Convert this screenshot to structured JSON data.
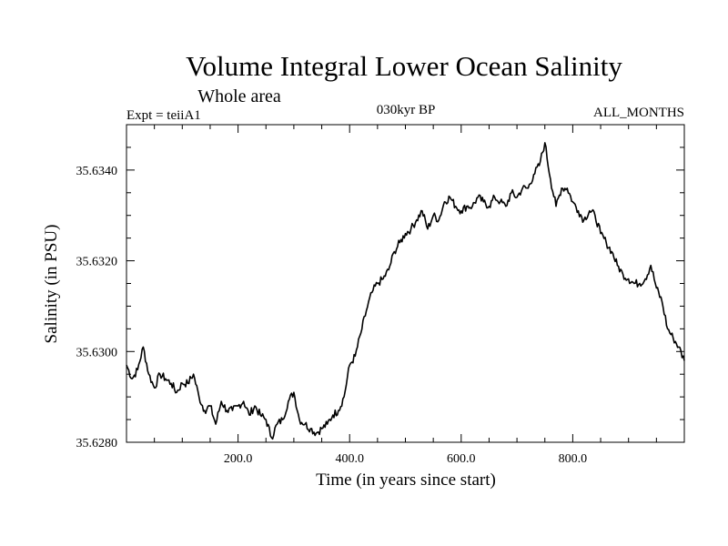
{
  "chart_data": {
    "type": "line",
    "title": "Volume Integral Lower Ocean Salinity",
    "subtitle": "Whole area",
    "annotations": {
      "left": "Expt = teiiA1",
      "center": "030kyr BP",
      "right": "ALL_MONTHS"
    },
    "xlabel": "Time (in years since start)",
    "ylabel": "Salinity (in PSU)",
    "xlim": [
      0,
      1000
    ],
    "ylim": [
      35.628,
      35.635
    ],
    "xticks": [
      200,
      400,
      600,
      800
    ],
    "xtick_labels": [
      "200.0",
      "400.0",
      "600.0",
      "800.0"
    ],
    "yticks": [
      35.628,
      35.63,
      35.632,
      35.634
    ],
    "ytick_labels": [
      "35.6280",
      "35.6300",
      "35.6320",
      "35.6340"
    ],
    "grid": false,
    "color": "#000000",
    "series": [
      {
        "x": [
          0,
          10,
          20,
          30,
          40,
          50,
          60,
          70,
          80,
          90,
          100,
          110,
          120,
          130,
          140,
          150,
          160,
          170,
          180,
          190,
          200,
          210,
          220,
          230,
          240,
          250,
          260,
          270,
          280,
          290,
          300,
          310,
          320,
          330,
          340,
          350,
          360,
          370,
          380,
          390,
          400,
          410,
          420,
          430,
          440,
          450,
          460,
          470,
          480,
          490,
          500,
          510,
          520,
          530,
          540,
          550,
          560,
          570,
          580,
          590,
          600,
          610,
          620,
          630,
          640,
          650,
          660,
          670,
          680,
          690,
          700,
          710,
          720,
          730,
          740,
          750,
          760,
          770,
          780,
          790,
          800,
          810,
          820,
          830,
          840,
          850,
          860,
          870,
          880,
          890,
          900,
          910,
          920,
          930,
          940,
          950,
          960,
          970,
          980,
          990,
          1000
        ],
        "values": [
          35.6297,
          35.6294,
          35.6296,
          35.6301,
          35.6295,
          35.6292,
          35.6295,
          35.6294,
          35.6293,
          35.6291,
          35.6293,
          35.6293,
          35.6295,
          35.629,
          35.6287,
          35.6288,
          35.6284,
          35.6289,
          35.6287,
          35.6287,
          35.6288,
          35.6289,
          35.6286,
          35.6288,
          35.6286,
          35.6285,
          35.6281,
          35.6284,
          35.6285,
          35.6289,
          35.6291,
          35.6285,
          35.6284,
          35.6283,
          35.6282,
          35.6283,
          35.6284,
          35.6286,
          35.6287,
          35.629,
          35.6297,
          35.6299,
          35.6304,
          35.6309,
          35.6313,
          35.6315,
          35.6316,
          35.6318,
          35.6322,
          35.6324,
          35.6326,
          35.6327,
          35.6329,
          35.6331,
          35.6327,
          35.633,
          35.6329,
          35.6333,
          35.6334,
          35.6332,
          35.6331,
          35.6332,
          35.6332,
          35.6334,
          35.6333,
          35.6332,
          35.6334,
          35.6333,
          35.6332,
          35.6335,
          35.6334,
          35.6336,
          35.6336,
          35.6339,
          35.6341,
          35.6346,
          35.6338,
          35.6332,
          35.6336,
          35.6336,
          35.6333,
          35.6331,
          35.6329,
          35.6331,
          35.633,
          35.6326,
          35.6324,
          35.6322,
          35.6319,
          35.6317,
          35.6316,
          35.6315,
          35.6315,
          35.6316,
          35.6319,
          35.6314,
          35.6311,
          35.6305,
          35.6303,
          35.6301,
          35.6298
        ]
      }
    ]
  }
}
